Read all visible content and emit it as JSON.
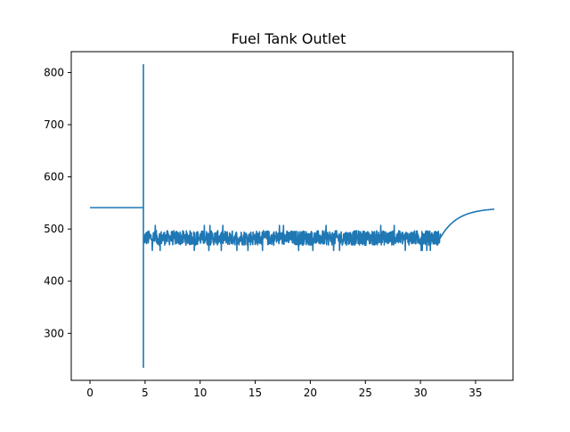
{
  "chart_data": {
    "type": "line",
    "title": "Fuel Tank Outlet",
    "xlabel": "",
    "ylabel": "",
    "xlim": [
      -1.7,
      38.4
    ],
    "ylim": [
      210,
      840
    ],
    "xticks": [
      0,
      5,
      10,
      15,
      20,
      25,
      30,
      35
    ],
    "yticks": [
      300,
      400,
      500,
      600,
      700,
      800
    ],
    "grid": false,
    "line_color": "#1f77b4",
    "series": [
      {
        "segments": [
          {
            "kind": "flat",
            "x0": 0,
            "x1": 4.8,
            "y": 541
          },
          {
            "kind": "spikes",
            "x": 4.85,
            "points": [
              541,
              815,
              235,
              635,
              450,
              520,
              480
            ]
          },
          {
            "kind": "noise",
            "x0": 4.9,
            "x1": 31.8,
            "center": 483,
            "amplitude": 14,
            "peak_max": 511,
            "trough_min": 455
          },
          {
            "kind": "rise",
            "x0": 31.8,
            "x1": 36.7,
            "y0": 483,
            "y1": 538
          }
        ]
      }
    ]
  }
}
